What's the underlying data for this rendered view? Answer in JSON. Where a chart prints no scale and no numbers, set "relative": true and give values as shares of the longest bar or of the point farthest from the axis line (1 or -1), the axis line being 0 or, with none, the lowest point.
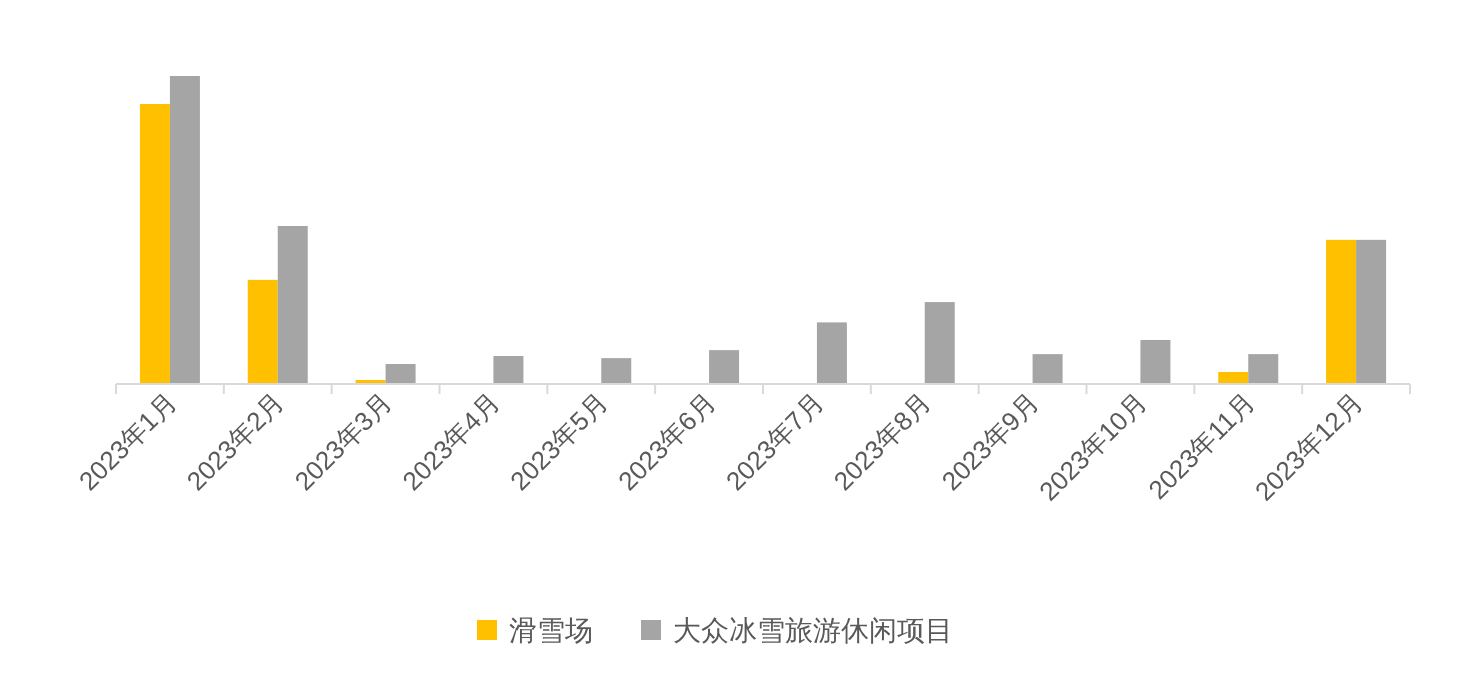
{
  "chart_data": {
    "type": "bar",
    "relative": true,
    "legend": "bottom",
    "categories": [
      "2023年1月",
      "2023年2月",
      "2023年3月",
      "2023年4月",
      "2023年5月",
      "2023年6月",
      "2023年7月",
      "2023年8月",
      "2023年9月",
      "2023年10月",
      "2023年11月",
      "2023年12月"
    ],
    "series": [
      {
        "name": "滑雪场",
        "color": "#ffc000",
        "values": [
          0.909,
          0.338,
          0.013,
          null,
          null,
          null,
          null,
          null,
          null,
          null,
          0.039,
          0.468
        ]
      },
      {
        "name": "大众冰雪旅游休闲项目",
        "color": "#a5a5a5",
        "values": [
          1,
          0.513,
          0.065,
          0.091,
          0.084,
          0.11,
          0.2,
          0.266,
          0.097,
          0.143,
          0.097,
          0.468
        ]
      }
    ]
  }
}
